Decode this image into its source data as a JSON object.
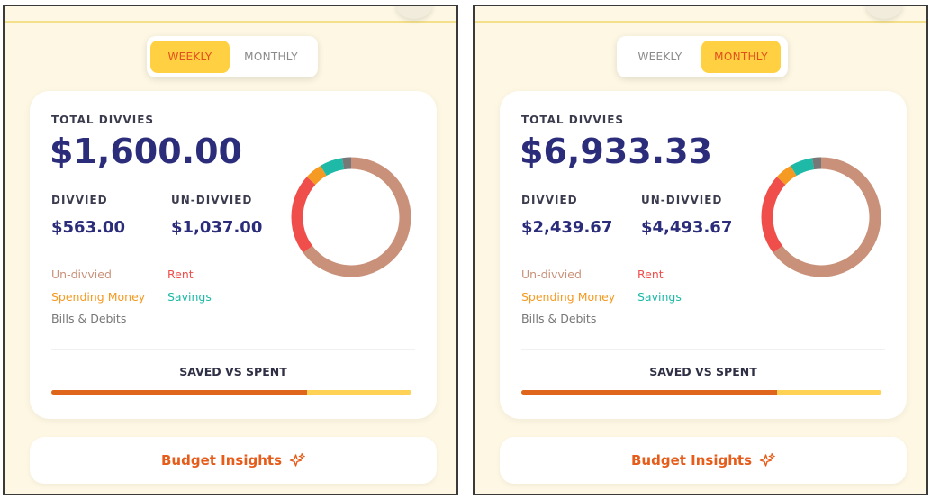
{
  "colors": {
    "undivvied": "#c99179",
    "rent": "#ef4e4a",
    "spending": "#f59a22",
    "savings": "#1fb9a8",
    "bills": "#777777",
    "accent": "#ffd142",
    "bar_spent": "#e0651c",
    "bar_saved": "#ffd154"
  },
  "legend": {
    "undivvied": "Un-divvied",
    "rent": "Rent",
    "spending": "Spending Money",
    "savings": "Savings",
    "bills": "Bills & Debits"
  },
  "labels": {
    "total": "TOTAL DIVVIES",
    "divvied": "DIVVIED",
    "undivvied": "UN-DIVVIED",
    "saved_vs_spent": "SAVED VS SPENT",
    "insights": "Budget Insights"
  },
  "panels": [
    {
      "toggle": [
        {
          "label": "WEEKLY",
          "active": true
        },
        {
          "label": "MONTHLY",
          "active": false
        }
      ],
      "total": "$1,600.00",
      "divvied": "$563.00",
      "undivvied": "$1,037.00",
      "saved_vs_spent_fraction": 0.71
    },
    {
      "toggle": [
        {
          "label": "WEEKLY",
          "active": false
        },
        {
          "label": "MONTHLY",
          "active": true
        }
      ],
      "total": "$6,933.33",
      "divvied": "$2,439.67",
      "undivvied": "$4,493.67",
      "saved_vs_spent_fraction": 0.71
    }
  ],
  "donut_segments": [
    {
      "key": "undivvied",
      "percent": 64.8
    },
    {
      "key": "rent",
      "percent": 21.9
    },
    {
      "key": "spending",
      "percent": 4.7
    },
    {
      "key": "savings",
      "percent": 6.2
    },
    {
      "key": "bills",
      "percent": 2.4
    }
  ]
}
